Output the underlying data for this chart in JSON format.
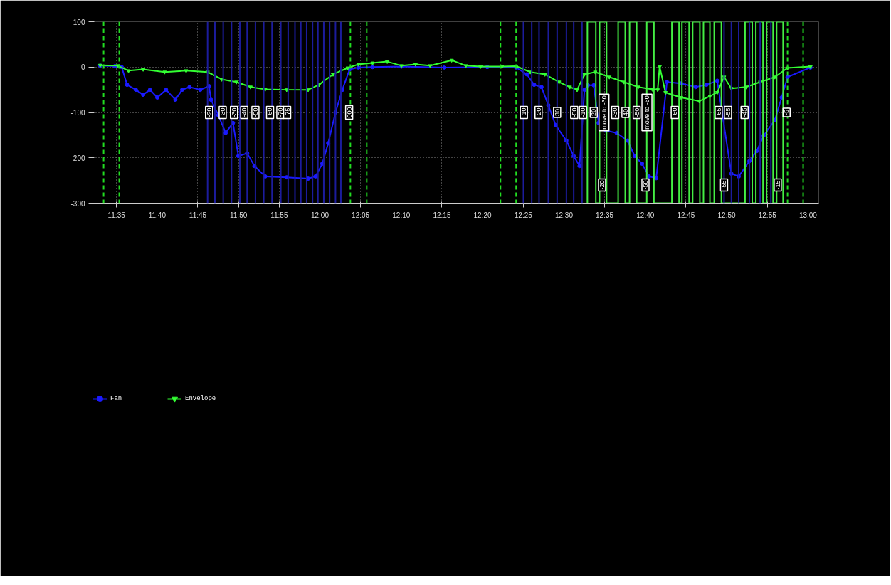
{
  "chart_data": {
    "type": "line",
    "xlim": [
      11.535,
      13.022
    ],
    "ylim": [
      -300,
      100
    ],
    "xticks": [
      {
        "value": 11.5833,
        "label": "11:35"
      },
      {
        "value": 11.6667,
        "label": "11:40"
      },
      {
        "value": 11.75,
        "label": "11:45"
      },
      {
        "value": 11.8333,
        "label": "11:50"
      },
      {
        "value": 11.9167,
        "label": "11:55"
      },
      {
        "value": 12.0,
        "label": "12:00"
      },
      {
        "value": 12.0833,
        "label": "12:05"
      },
      {
        "value": 12.1667,
        "label": "12:10"
      },
      {
        "value": 12.25,
        "label": "12:15"
      },
      {
        "value": 12.3333,
        "label": "12:20"
      },
      {
        "value": 12.4167,
        "label": "12:25"
      },
      {
        "value": 12.5,
        "label": "12:30"
      },
      {
        "value": 12.5833,
        "label": "12:35"
      },
      {
        "value": 12.6667,
        "label": "12:40"
      },
      {
        "value": 12.75,
        "label": "12:45"
      },
      {
        "value": 12.8333,
        "label": "12:50"
      },
      {
        "value": 12.9167,
        "label": "12:55"
      },
      {
        "value": 13.0,
        "label": "13:00"
      }
    ],
    "yticks": [
      100,
      0,
      -100,
      -200,
      -300
    ],
    "grid": true,
    "legend": "bottom left",
    "line_style": "solid",
    "series": [
      {
        "name": "Fan",
        "color": "#1a1aff",
        "marker": "circle",
        "x": [
          11.55,
          11.58,
          11.594,
          11.605,
          11.623,
          11.638,
          11.652,
          11.667,
          11.685,
          11.704,
          11.718,
          11.733,
          11.755,
          11.773,
          11.777,
          11.792,
          11.807,
          11.822,
          11.833,
          11.851,
          11.866,
          11.888,
          11.932,
          11.976,
          11.991,
          12.005,
          12.017,
          12.032,
          12.046,
          12.061,
          12.079,
          12.108,
          12.167,
          12.255,
          12.343,
          12.402,
          12.424,
          12.439,
          12.454,
          12.468,
          12.483,
          12.505,
          12.52,
          12.532,
          12.542,
          12.549,
          12.561,
          12.571,
          12.586,
          12.608,
          12.63,
          12.645,
          12.66,
          12.674,
          12.689,
          12.711,
          12.74,
          12.77,
          12.792,
          12.814,
          12.843,
          12.858,
          12.88,
          12.895,
          12.909,
          12.932,
          12.946,
          12.958,
          13.005
        ],
        "values": [
          3,
          2,
          0,
          -39,
          -50,
          -61,
          -50,
          -67,
          -50,
          -72,
          -50,
          -44,
          -50,
          -42,
          -72,
          -106,
          -145,
          -123,
          -196,
          -190,
          -218,
          -241,
          -243,
          -246,
          -241,
          -213,
          -168,
          -100,
          -50,
          -5,
          -1,
          0,
          1,
          -1,
          0,
          -1,
          -16,
          -39,
          -44,
          -84,
          -128,
          -162,
          -196,
          -218,
          -50,
          -40,
          -40,
          -123,
          -140,
          -145,
          -162,
          -196,
          -213,
          -241,
          -245,
          -33,
          -36,
          -44,
          -39,
          -30,
          -235,
          -241,
          -207,
          -185,
          -151,
          -117,
          -67,
          -22,
          -1
        ]
      },
      {
        "name": "Envelope",
        "color": "#33ff33",
        "marker": "triangle",
        "x": [
          11.55,
          11.586,
          11.608,
          11.638,
          11.682,
          11.726,
          11.77,
          11.799,
          11.829,
          11.858,
          11.888,
          11.932,
          11.976,
          11.998,
          12.027,
          12.057,
          12.079,
          12.108,
          12.138,
          12.167,
          12.196,
          12.226,
          12.27,
          12.299,
          12.329,
          12.373,
          12.402,
          12.431,
          12.461,
          12.49,
          12.512,
          12.527,
          12.542,
          12.564,
          12.593,
          12.623,
          12.652,
          12.681,
          12.692,
          12.696,
          12.708,
          12.74,
          12.777,
          12.799,
          12.814,
          12.828,
          12.843,
          12.873,
          12.902,
          12.932,
          12.958,
          13.005
        ],
        "values": [
          4,
          3,
          -8,
          -5,
          -11,
          -8,
          -11,
          -27,
          -33,
          -44,
          -49,
          -50,
          -50,
          -39,
          -16,
          -2,
          6,
          9,
          12,
          3,
          6,
          3,
          15,
          3,
          1,
          1,
          2,
          -11,
          -16,
          -33,
          -44,
          -50,
          -16,
          -11,
          -22,
          -33,
          -44,
          -49,
          -50,
          1,
          -56,
          -67,
          -75,
          -64,
          -56,
          -22,
          -47,
          -44,
          -33,
          -22,
          -2,
          1
        ]
      },
      {
        "color": "#44ee44",
        "marker": "none",
        "x": [
          12.548,
          12.548,
          12.5653,
          12.5653,
          12.573,
          12.573,
          12.5873,
          12.5873,
          12.611,
          12.611,
          12.6255,
          12.6255,
          12.6344,
          12.6344,
          12.649,
          12.649,
          12.6696,
          12.6696,
          12.6843,
          12.6843,
          12.7211,
          12.7211,
          12.7358,
          12.7358,
          12.7417,
          12.7417,
          12.7564,
          12.7564,
          12.7637,
          12.7637,
          12.7784,
          12.7784,
          12.7858,
          12.7858,
          12.799,
          12.799,
          12.8078,
          12.8078,
          12.8225,
          12.8225,
          12.871,
          12.871,
          12.8857,
          12.8857,
          12.8931,
          12.8931,
          12.9078,
          12.9078,
          12.9151,
          12.9151,
          12.9284,
          12.9284,
          12.9357,
          12.9357,
          12.9489,
          12.9489
        ],
        "values": [
          -300,
          100,
          100,
          -300,
          -300,
          100,
          100,
          -300,
          -300,
          100,
          100,
          -300,
          -300,
          100,
          100,
          -300,
          -300,
          100,
          100,
          -300,
          -300,
          100,
          100,
          -300,
          -300,
          100,
          100,
          -300,
          -300,
          100,
          100,
          -300,
          -300,
          100,
          100,
          -300,
          -300,
          100,
          100,
          -300,
          -300,
          100,
          100,
          -300,
          -300,
          100,
          100,
          -300,
          -300,
          100,
          100,
          -300,
          -300,
          100,
          100,
          -300
        ]
      }
    ],
    "ref_lines": [
      {
        "axis": "x",
        "value": 11.557,
        "color": "#22dd22",
        "line_style": "dashed"
      },
      {
        "axis": "x",
        "value": 11.589,
        "color": "#22dd22",
        "line_style": "dashed"
      },
      {
        "axis": "x",
        "value": 12.0625,
        "color": "#22dd22",
        "line_style": "dashed"
      },
      {
        "axis": "x",
        "value": 12.096,
        "color": "#22dd22",
        "line_style": "dashed"
      },
      {
        "axis": "x",
        "value": 12.37,
        "color": "#22dd22",
        "line_style": "dashed"
      },
      {
        "axis": "x",
        "value": 12.402,
        "color": "#22dd22",
        "line_style": "dashed"
      },
      {
        "axis": "x",
        "value": 12.958,
        "color": "#22dd22",
        "line_style": "dashed"
      },
      {
        "axis": "x",
        "value": 12.99,
        "color": "#22dd22",
        "line_style": "dashed"
      },
      {
        "axis": "x",
        "value": 11.77,
        "color": "#1c1c9c",
        "line_style": "solid"
      },
      {
        "axis": "x",
        "value": 11.785,
        "color": "#1c1c9c",
        "line_style": "solid"
      },
      {
        "axis": "x",
        "value": 11.802,
        "color": "#1c1c9c",
        "line_style": "solid"
      },
      {
        "axis": "x",
        "value": 11.819,
        "color": "#1c1c9c",
        "line_style": "solid"
      },
      {
        "axis": "x",
        "value": 11.836,
        "color": "#1c1c9c",
        "line_style": "solid"
      },
      {
        "axis": "x",
        "value": 11.851,
        "color": "#1c1c9c",
        "line_style": "solid"
      },
      {
        "axis": "x",
        "value": 11.868,
        "color": "#1c1c9c",
        "line_style": "solid"
      },
      {
        "axis": "x",
        "value": 11.885,
        "color": "#1c1c9c",
        "line_style": "solid"
      },
      {
        "axis": "x",
        "value": 11.902,
        "color": "#1c1c9c",
        "line_style": "solid"
      },
      {
        "axis": "x",
        "value": 11.92,
        "color": "#1c1c9c",
        "line_style": "solid"
      },
      {
        "axis": "x",
        "value": 11.935,
        "color": "#1c1c9c",
        "line_style": "solid"
      },
      {
        "axis": "x",
        "value": 11.949,
        "color": "#1c1c9c",
        "line_style": "solid"
      },
      {
        "axis": "x",
        "value": 11.961,
        "color": "#1c1c9c",
        "line_style": "solid"
      },
      {
        "axis": "x",
        "value": 11.973,
        "color": "#1c1c9c",
        "line_style": "solid"
      },
      {
        "axis": "x",
        "value": 11.985,
        "color": "#1c1c9c",
        "line_style": "solid"
      },
      {
        "axis": "x",
        "value": 11.996,
        "color": "#1c1c9c",
        "line_style": "solid"
      },
      {
        "axis": "x",
        "value": 12.008,
        "color": "#1c1c9c",
        "line_style": "solid"
      },
      {
        "axis": "x",
        "value": 12.02,
        "color": "#1c1c9c",
        "line_style": "solid"
      },
      {
        "axis": "x",
        "value": 12.032,
        "color": "#1c1c9c",
        "line_style": "solid"
      },
      {
        "axis": "x",
        "value": 12.043,
        "color": "#1c1c9c",
        "line_style": "solid"
      },
      {
        "axis": "x",
        "value": 12.417,
        "color": "#1c1c9c",
        "line_style": "solid"
      },
      {
        "axis": "x",
        "value": 12.434,
        "color": "#1c1c9c",
        "line_style": "solid"
      },
      {
        "axis": "x",
        "value": 12.449,
        "color": "#1c1c9c",
        "line_style": "solid"
      },
      {
        "axis": "x",
        "value": 12.468,
        "color": "#1c1c9c",
        "line_style": "solid"
      },
      {
        "axis": "x",
        "value": 12.486,
        "color": "#1c1c9c",
        "line_style": "solid"
      },
      {
        "axis": "x",
        "value": 12.505,
        "color": "#1c1c9c",
        "line_style": "solid"
      },
      {
        "axis": "x",
        "value": 12.52,
        "color": "#1c1c9c",
        "line_style": "solid"
      },
      {
        "axis": "x",
        "value": 12.537,
        "color": "#1c1c9c",
        "line_style": "solid"
      },
      {
        "axis": "x",
        "value": 12.828,
        "color": "#1c1c9c",
        "line_style": "solid"
      },
      {
        "axis": "x",
        "value": 12.843,
        "color": "#1c1c9c",
        "line_style": "solid"
      },
      {
        "axis": "x",
        "value": 12.858,
        "color": "#1c1c9c",
        "line_style": "solid"
      },
      {
        "axis": "x",
        "value": 12.88,
        "color": "#1c1c9c",
        "line_style": "solid"
      },
      {
        "axis": "x",
        "value": 12.902,
        "color": "#1c1c9c",
        "line_style": "solid"
      },
      {
        "axis": "x",
        "value": 12.924,
        "color": "#1c1c9c",
        "line_style": "solid"
      }
    ],
    "annotations": [
      {
        "text": "-20",
        "x": 11.773,
        "y": -100
      },
      {
        "text": "-30",
        "x": 11.801,
        "y": -100
      },
      {
        "text": "-30",
        "x": 11.824,
        "y": -100
      },
      {
        "text": "-40",
        "x": 11.845,
        "y": -100
      },
      {
        "text": "-50",
        "x": 11.868,
        "y": -100
      },
      {
        "text": "-60",
        "x": 11.898,
        "y": -100
      },
      {
        "text": "-70",
        "x": 11.919,
        "y": -100
      },
      {
        "text": "-75",
        "x": 11.933,
        "y": -100
      },
      {
        "text": "000",
        "x": 12.06,
        "y": -100
      },
      {
        "text": "-10",
        "x": 12.418,
        "y": -100
      },
      {
        "text": "-20",
        "x": 12.448,
        "y": -100
      },
      {
        "text": "30",
        "x": 12.486,
        "y": -100
      },
      {
        "text": "-50",
        "x": 12.521,
        "y": -100
      },
      {
        "text": "-10",
        "x": 12.539,
        "y": -100
      },
      {
        "text": "20",
        "x": 12.561,
        "y": -100
      },
      {
        "text": "move to -30",
        "x": 12.582,
        "y": -100
      },
      {
        "text": "-30",
        "x": 12.605,
        "y": -100
      },
      {
        "text": "40",
        "x": 12.626,
        "y": -100
      },
      {
        "text": "-50",
        "x": 12.649,
        "y": -100
      },
      {
        "text": "move to -60",
        "x": 12.67,
        "y": -100
      },
      {
        "text": "-60",
        "x": 12.727,
        "y": -100
      },
      {
        "text": "-65",
        "x": 12.817,
        "y": -100
      },
      {
        "text": "-55",
        "x": 12.836,
        "y": -100
      },
      {
        "text": "-45",
        "x": 12.87,
        "y": -100
      },
      {
        "text": "-5",
        "x": 12.956,
        "y": -100
      },
      {
        "text": "-20",
        "x": 12.578,
        "y": -260
      },
      {
        "text": "-50",
        "x": 12.667,
        "y": -260
      },
      {
        "text": "-55",
        "x": 12.828,
        "y": -260
      },
      {
        "text": "-15",
        "x": 12.938,
        "y": -260
      }
    ]
  }
}
